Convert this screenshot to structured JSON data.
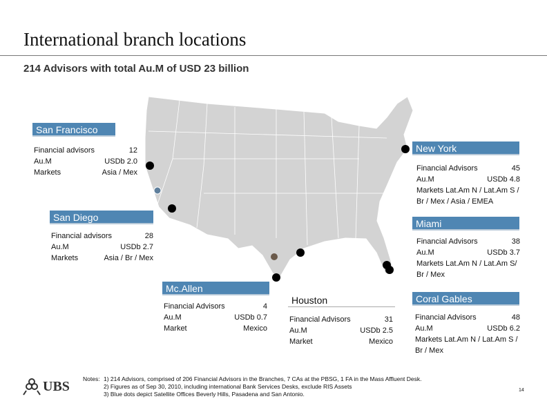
{
  "header": {
    "title": "International branch locations",
    "subtitle": "214 Advisors with total Au.M of USD 23 billion"
  },
  "branches": [
    {
      "name": "San Francisco",
      "rows": [
        [
          "Financial advisors",
          "12"
        ],
        [
          "Au.M",
          "USDb 2.0"
        ],
        [
          "Markets",
          "Asia / Mex"
        ]
      ]
    },
    {
      "name": "New York",
      "rows": [
        [
          "Financial Advisors",
          "45"
        ],
        [
          "Au.M",
          "USDb 4.8"
        ]
      ],
      "markets": "Markets Lat.Am N / Lat.Am S / Br / Mex / Asia / EMEA"
    },
    {
      "name": "San Diego",
      "rows": [
        [
          "Financial advisors",
          "28"
        ],
        [
          "Au.M",
          "USDb 2.7"
        ],
        [
          "Markets",
          "Asia / Br / Mex"
        ]
      ]
    },
    {
      "name": "Miami",
      "rows": [
        [
          "Financial Advisors",
          "38"
        ],
        [
          "Au.M",
          "USDb 3.7"
        ]
      ],
      "markets": "Markets Lat.Am N / Lat.Am S/ Br / Mex"
    },
    {
      "name": "Mc.Allen",
      "rows": [
        [
          "Financial Advisors",
          "4"
        ],
        [
          "Au.M",
          "USDb 0.7"
        ],
        [
          "Market",
          "Mexico"
        ]
      ]
    },
    {
      "name": "Houston",
      "rows": [
        [
          "Financial Advisors",
          "31"
        ],
        [
          "Au.M",
          "USDb 2.5"
        ],
        [
          "Market",
          "Mexico"
        ]
      ]
    },
    {
      "name": "Coral Gables",
      "rows": [
        [
          "Financial Advisors",
          "48"
        ],
        [
          "Au.M",
          "USDb 6.2"
        ]
      ],
      "markets": "Markets Lat.Am N / Lat.Am S / Br / Mex"
    }
  ],
  "notes": {
    "label": "Notes:",
    "lines": [
      "1) 214 Advisors, comprised of 206 Financial Advisors in the Branches, 7 CAs at the PBSG, 1 FA in the Mass Affluent Desk.",
      "2) Figures as of Sep 30, 2010, including international Bank Services Desks, exclude RIS Assets",
      "3) Blue dots depict Satellite Offices Beverly Hills, Pasadena and San Antonio."
    ]
  },
  "logo": "UBS",
  "page_number": "14"
}
